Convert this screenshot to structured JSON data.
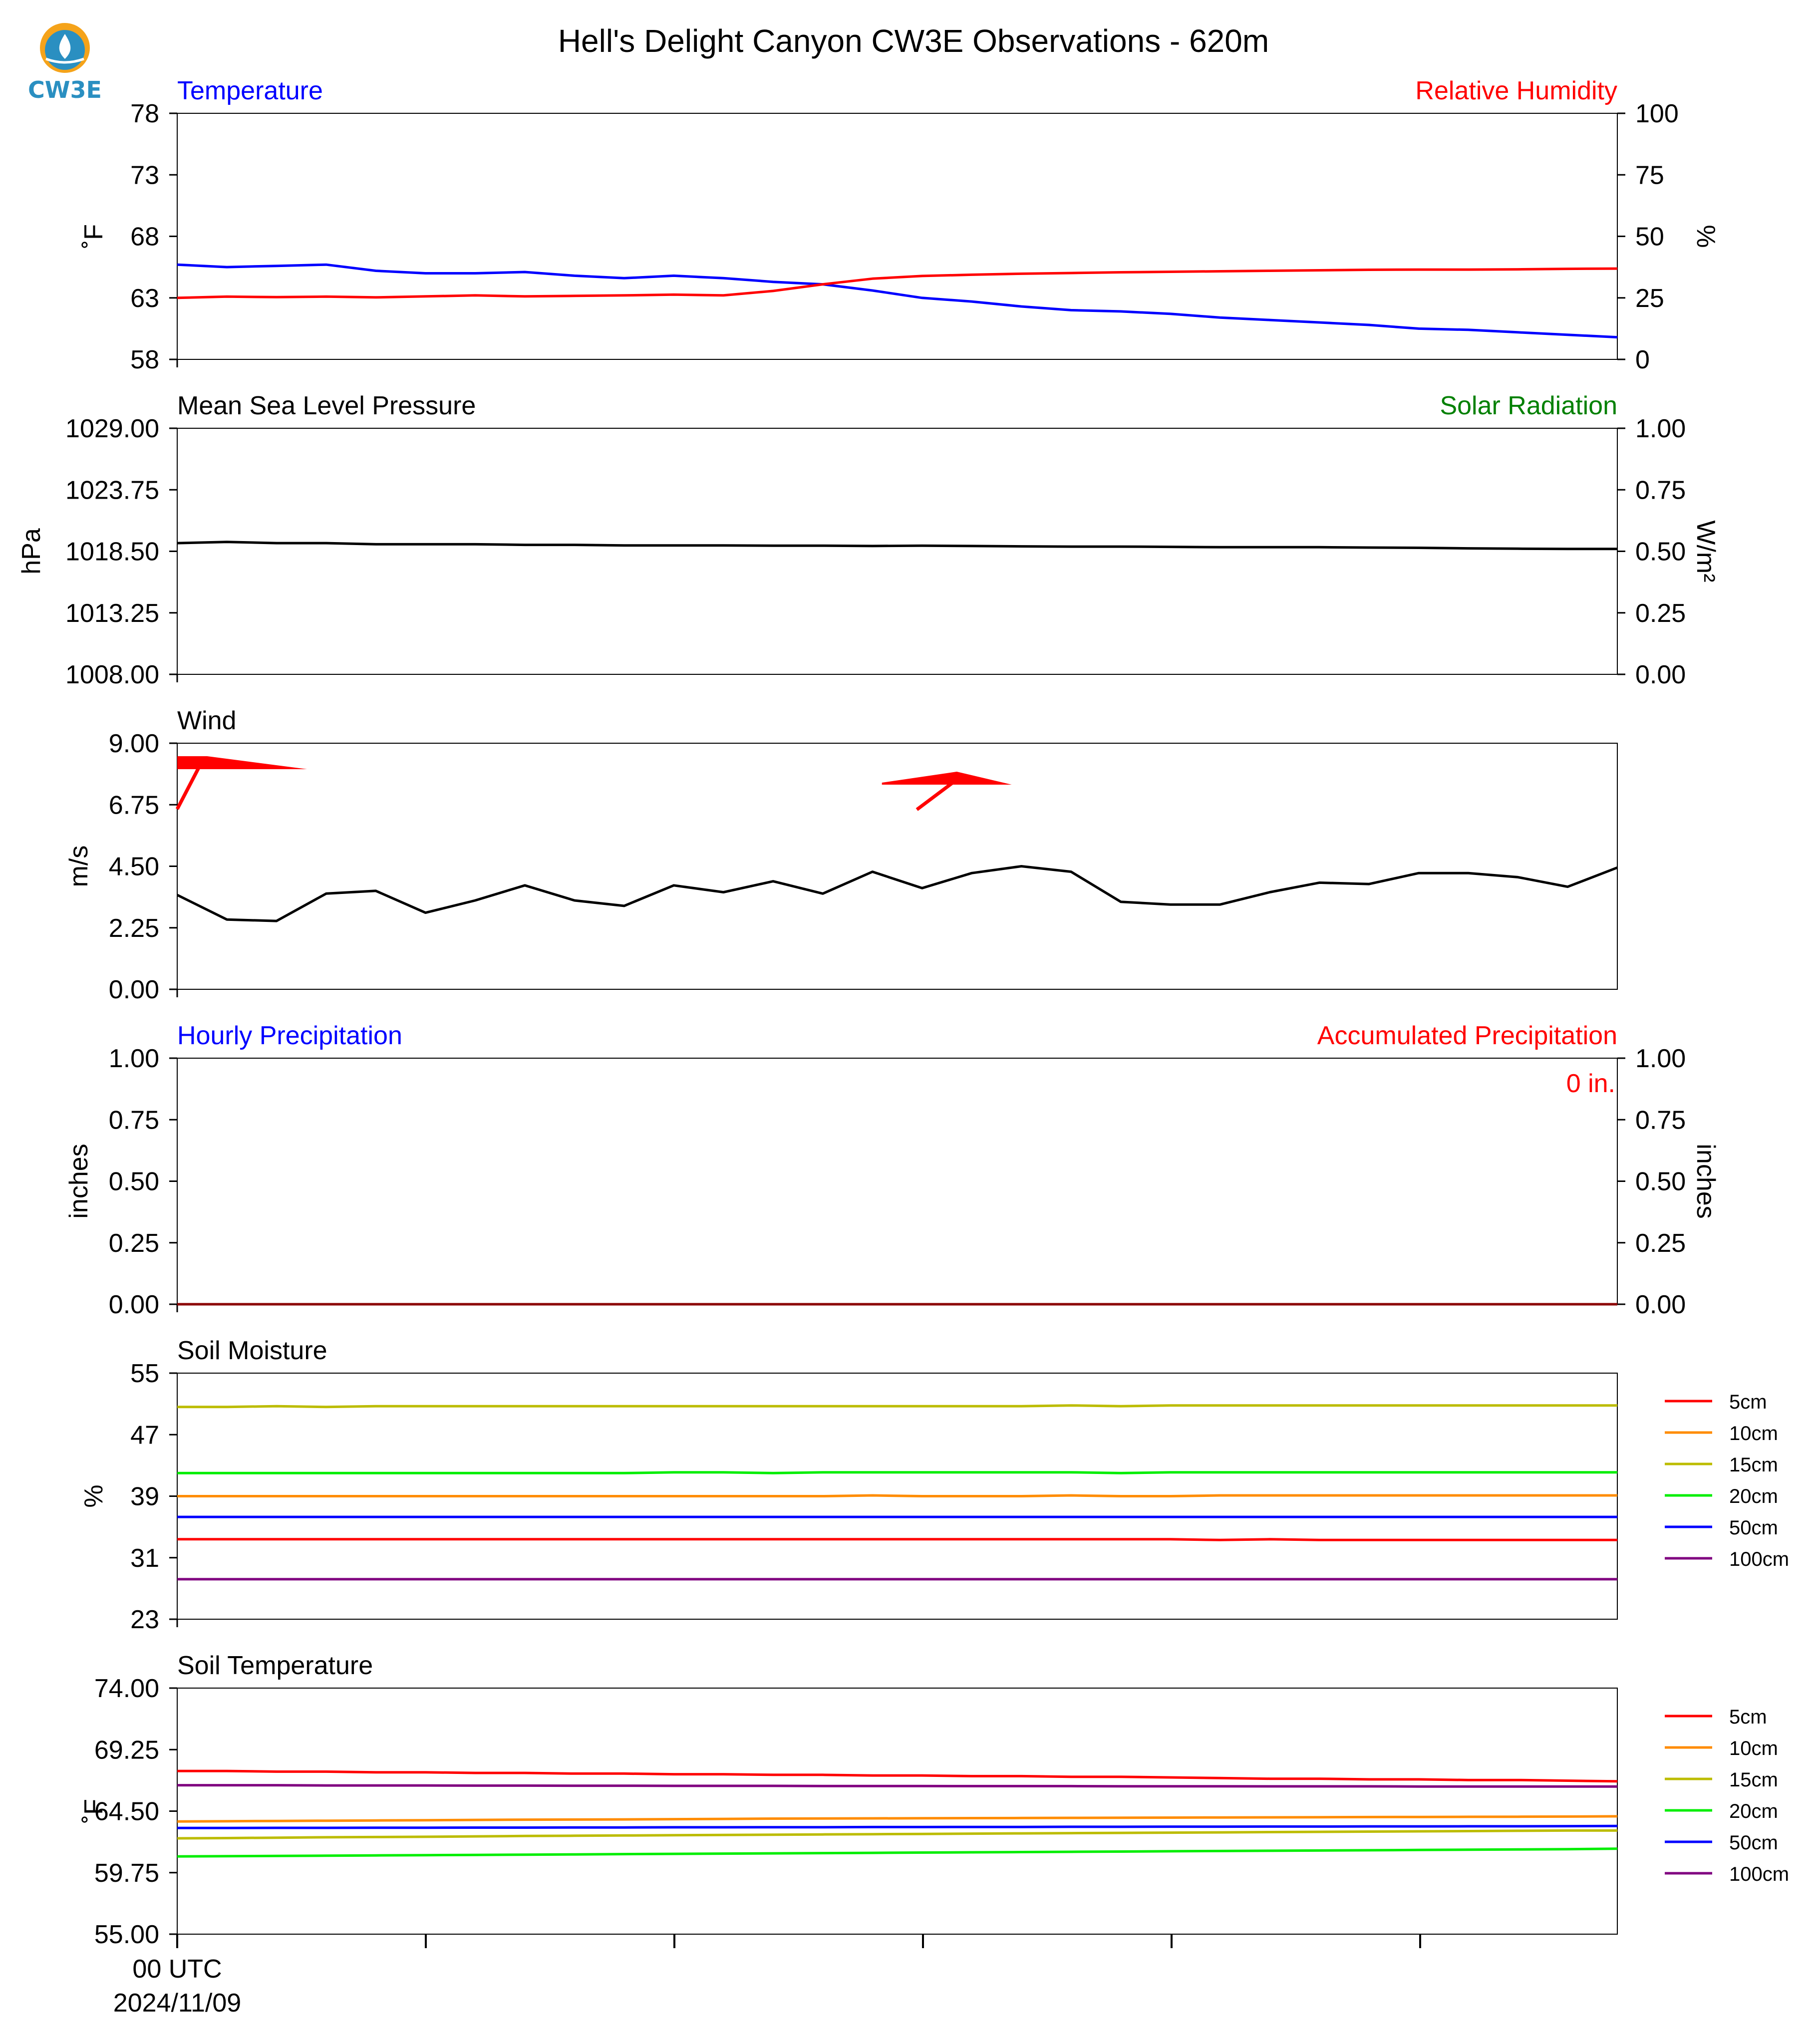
{
  "title": "Hell's Delight Canyon CW3E Observations - 620m",
  "logo": {
    "text": "CW3E",
    "color_primary": "#2a8fc1",
    "color_accent": "#f5a31a"
  },
  "x_axis": {
    "start_label": "00 UTC",
    "date_label": "2024/11/09",
    "tick_count": 6
  },
  "chart_data": [
    {
      "id": "temp_rh",
      "type": "line",
      "left_title": "Temperature",
      "left_title_color": "#0000ff",
      "right_title": "Relative Humidity",
      "right_title_color": "#ff0000",
      "ylabel": "˚F",
      "ylabel_right": "%",
      "ylim": [
        58,
        78
      ],
      "yticks": [
        "78",
        "73",
        "68",
        "63",
        "58"
      ],
      "ylim_right": [
        0,
        100
      ],
      "yticks_right": [
        "100",
        "75",
        "50",
        "25",
        "0"
      ],
      "series": [
        {
          "name": "Temperature",
          "axis": "left",
          "color": "#0000ff",
          "values": [
            65.7,
            65.5,
            65.6,
            65.7,
            65.2,
            65.0,
            65.0,
            65.1,
            64.8,
            64.6,
            64.8,
            64.6,
            64.3,
            64.1,
            63.6,
            63.0,
            62.7,
            62.3,
            62.0,
            61.9,
            61.7,
            61.4,
            61.2,
            61.0,
            60.8,
            60.5,
            60.4,
            60.2,
            60.0,
            59.8
          ]
        },
        {
          "name": "Relative Humidity",
          "axis": "right",
          "color": "#ff0000",
          "values": [
            25.0,
            25.5,
            25.3,
            25.5,
            25.2,
            25.6,
            26.0,
            25.6,
            25.8,
            26.0,
            26.3,
            26.0,
            27.8,
            30.5,
            32.8,
            33.9,
            34.4,
            34.8,
            35.1,
            35.4,
            35.6,
            35.8,
            36.0,
            36.2,
            36.4,
            36.5,
            36.5,
            36.6,
            36.8,
            36.9
          ]
        }
      ]
    },
    {
      "id": "pressure",
      "type": "line",
      "left_title": "Mean Sea Level Pressure",
      "left_title_color": "#000000",
      "right_title": "Solar Radiation",
      "right_title_color": "#008000",
      "ylabel": "hPa",
      "ylabel_right": "W/m²",
      "ylim": [
        1008,
        1029
      ],
      "yticks": [
        "1029.00",
        "1023.75",
        "1018.50",
        "1013.25",
        "1008.00"
      ],
      "ylim_right": [
        0,
        1
      ],
      "yticks_right": [
        "1.00",
        "0.75",
        "0.50",
        "0.25",
        "0.00"
      ],
      "series": [
        {
          "name": "Mean Sea Level Pressure",
          "axis": "left",
          "color": "#000000",
          "values": [
            1019.2,
            1019.3,
            1019.2,
            1019.2,
            1019.1,
            1019.1,
            1019.1,
            1019.05,
            1019.05,
            1019.0,
            1019.0,
            1019.0,
            1018.98,
            1018.98,
            1018.95,
            1018.98,
            1018.95,
            1018.92,
            1018.9,
            1018.9,
            1018.88,
            1018.85,
            1018.85,
            1018.85,
            1018.82,
            1018.8,
            1018.75,
            1018.72,
            1018.7,
            1018.7
          ]
        }
      ]
    },
    {
      "id": "wind",
      "type": "line",
      "left_title": "Wind",
      "left_title_color": "#000000",
      "ylabel": "m/s",
      "ylim": [
        0,
        9
      ],
      "yticks": [
        "9.00",
        "6.75",
        "4.50",
        "2.25",
        "0.00"
      ],
      "series": [
        {
          "name": "Wind",
          "axis": "left",
          "color": "#000000",
          "values": [
            3.45,
            2.55,
            2.5,
            3.5,
            3.6,
            2.8,
            3.25,
            3.8,
            3.25,
            3.05,
            3.8,
            3.55,
            3.95,
            3.5,
            4.3,
            3.7,
            4.25,
            4.5,
            4.3,
            3.2,
            3.1,
            3.1,
            3.55,
            3.9,
            3.85,
            4.25,
            4.25,
            4.1,
            3.75,
            4.45
          ]
        }
      ],
      "barbs": [
        {
          "x_index": 0,
          "direction": "west",
          "note": "pennant"
        },
        {
          "x_index": 16,
          "direction": "east",
          "note": "pennant"
        }
      ]
    },
    {
      "id": "precip",
      "type": "line",
      "left_title": "Hourly Precipitation",
      "left_title_color": "#0000ff",
      "right_title": "Accumulated Precipitation",
      "right_title_color": "#ff0000",
      "annotation": "0 in.",
      "annotation_color": "#ff0000",
      "ylabel": "inches",
      "ylabel_right": "inches",
      "ylim": [
        0,
        1
      ],
      "yticks": [
        "1.00",
        "0.75",
        "0.50",
        "0.25",
        "0.00"
      ],
      "ylim_right": [
        0,
        1
      ],
      "yticks_right": [
        "1.00",
        "0.75",
        "0.50",
        "0.25",
        "0.00"
      ],
      "series": [
        {
          "name": "Accumulated Precipitation",
          "axis": "right",
          "color": "#8b0000",
          "values": [
            0,
            0,
            0,
            0,
            0,
            0,
            0,
            0,
            0,
            0,
            0,
            0,
            0,
            0,
            0,
            0,
            0,
            0,
            0,
            0,
            0,
            0,
            0,
            0,
            0,
            0,
            0,
            0,
            0,
            0
          ]
        }
      ]
    },
    {
      "id": "soil_moisture",
      "type": "line",
      "left_title": "Soil Moisture",
      "left_title_color": "#000000",
      "ylabel": "%",
      "ylim": [
        23,
        55
      ],
      "yticks": [
        "55",
        "47",
        "39",
        "31",
        "23"
      ],
      "legend": true,
      "series": [
        {
          "name": "5cm",
          "axis": "left",
          "color": "#ff0000",
          "values": [
            33.4,
            33.4,
            33.4,
            33.4,
            33.4,
            33.4,
            33.4,
            33.4,
            33.4,
            33.4,
            33.4,
            33.4,
            33.4,
            33.4,
            33.4,
            33.4,
            33.4,
            33.4,
            33.4,
            33.4,
            33.4,
            33.3,
            33.4,
            33.3,
            33.3,
            33.3,
            33.3,
            33.3,
            33.3,
            33.3
          ]
        },
        {
          "name": "10cm",
          "axis": "left",
          "color": "#ff8c00",
          "values": [
            39.0,
            39.0,
            39.0,
            39.0,
            39.0,
            39.0,
            39.0,
            39.0,
            39.0,
            39.0,
            39.0,
            39.0,
            39.0,
            39.0,
            39.1,
            39.0,
            39.0,
            39.0,
            39.1,
            39.0,
            39.0,
            39.1,
            39.1,
            39.1,
            39.1,
            39.1,
            39.1,
            39.1,
            39.1,
            39.1
          ]
        },
        {
          "name": "15cm",
          "axis": "left",
          "color": "#bcbc00",
          "values": [
            50.6,
            50.6,
            50.7,
            50.6,
            50.7,
            50.7,
            50.7,
            50.7,
            50.7,
            50.7,
            50.7,
            50.7,
            50.7,
            50.7,
            50.7,
            50.7,
            50.7,
            50.7,
            50.8,
            50.7,
            50.8,
            50.8,
            50.8,
            50.8,
            50.8,
            50.8,
            50.8,
            50.8,
            50.8,
            50.8
          ]
        },
        {
          "name": "20cm",
          "axis": "left",
          "color": "#00ee00",
          "values": [
            42.0,
            42.0,
            42.0,
            42.0,
            42.0,
            42.0,
            42.0,
            42.0,
            42.0,
            42.0,
            42.1,
            42.1,
            42.0,
            42.1,
            42.1,
            42.1,
            42.1,
            42.1,
            42.1,
            42.0,
            42.1,
            42.1,
            42.1,
            42.1,
            42.1,
            42.1,
            42.1,
            42.1,
            42.1,
            42.1
          ]
        },
        {
          "name": "50cm",
          "axis": "left",
          "color": "#0000ff",
          "values": [
            36.3,
            36.3,
            36.3,
            36.3,
            36.3,
            36.3,
            36.3,
            36.3,
            36.3,
            36.3,
            36.3,
            36.3,
            36.3,
            36.3,
            36.3,
            36.3,
            36.3,
            36.3,
            36.3,
            36.3,
            36.3,
            36.3,
            36.3,
            36.3,
            36.3,
            36.3,
            36.3,
            36.3,
            36.3,
            36.3
          ]
        },
        {
          "name": "100cm",
          "axis": "left",
          "color": "#800080",
          "values": [
            28.2,
            28.2,
            28.2,
            28.2,
            28.2,
            28.2,
            28.2,
            28.2,
            28.2,
            28.2,
            28.2,
            28.2,
            28.2,
            28.2,
            28.2,
            28.2,
            28.2,
            28.2,
            28.2,
            28.2,
            28.2,
            28.2,
            28.2,
            28.2,
            28.2,
            28.2,
            28.2,
            28.2,
            28.2,
            28.2
          ]
        }
      ]
    },
    {
      "id": "soil_temp",
      "type": "line",
      "left_title": "Soil Temperature",
      "left_title_color": "#000000",
      "ylabel": "˚F",
      "ylim": [
        55,
        74
      ],
      "yticks": [
        "74.00",
        "69.25",
        "64.50",
        "59.75",
        "55.00"
      ],
      "legend": true,
      "series": [
        {
          "name": "5cm",
          "axis": "left",
          "color": "#ff0000",
          "values": [
            67.6,
            67.6,
            67.55,
            67.55,
            67.5,
            67.5,
            67.45,
            67.45,
            67.4,
            67.4,
            67.35,
            67.35,
            67.3,
            67.3,
            67.25,
            67.25,
            67.2,
            67.2,
            67.15,
            67.15,
            67.1,
            67.05,
            67.0,
            67.0,
            66.95,
            66.95,
            66.9,
            66.9,
            66.85,
            66.8
          ]
        },
        {
          "name": "10cm",
          "axis": "left",
          "color": "#ff8c00",
          "values": [
            63.7,
            63.72,
            63.74,
            63.76,
            63.78,
            63.8,
            63.82,
            63.84,
            63.85,
            63.86,
            63.88,
            63.9,
            63.92,
            63.93,
            63.94,
            63.95,
            63.96,
            63.97,
            63.98,
            63.99,
            64.0,
            64.01,
            64.02,
            64.03,
            64.04,
            64.05,
            64.06,
            64.07,
            64.08,
            64.1
          ]
        },
        {
          "name": "15cm",
          "axis": "left",
          "color": "#bcbc00",
          "values": [
            62.4,
            62.42,
            62.45,
            62.48,
            62.5,
            62.52,
            62.55,
            62.58,
            62.6,
            62.62,
            62.64,
            62.66,
            62.68,
            62.7,
            62.72,
            62.74,
            62.76,
            62.78,
            62.8,
            62.82,
            62.84,
            62.86,
            62.88,
            62.9,
            62.92,
            62.94,
            62.96,
            62.98,
            63.0,
            63.0
          ]
        },
        {
          "name": "20cm",
          "axis": "left",
          "color": "#00ee00",
          "values": [
            61.0,
            61.02,
            61.04,
            61.06,
            61.08,
            61.1,
            61.12,
            61.14,
            61.16,
            61.18,
            61.2,
            61.22,
            61.24,
            61.26,
            61.28,
            61.3,
            61.32,
            61.34,
            61.36,
            61.38,
            61.4,
            61.42,
            61.44,
            61.46,
            61.48,
            61.5,
            61.52,
            61.54,
            61.56,
            61.6
          ]
        },
        {
          "name": "50cm",
          "axis": "left",
          "color": "#0000ff",
          "values": [
            63.2,
            63.2,
            63.21,
            63.21,
            63.22,
            63.22,
            63.23,
            63.23,
            63.24,
            63.24,
            63.25,
            63.25,
            63.26,
            63.26,
            63.27,
            63.27,
            63.28,
            63.28,
            63.29,
            63.29,
            63.3,
            63.3,
            63.31,
            63.31,
            63.32,
            63.32,
            63.33,
            63.33,
            63.34,
            63.35
          ]
        },
        {
          "name": "100cm",
          "axis": "left",
          "color": "#800080",
          "values": [
            66.5,
            66.5,
            66.5,
            66.48,
            66.48,
            66.48,
            66.47,
            66.47,
            66.46,
            66.46,
            66.45,
            66.45,
            66.45,
            66.44,
            66.44,
            66.44,
            66.43,
            66.43,
            66.43,
            66.42,
            66.42,
            66.42,
            66.41,
            66.41,
            66.41,
            66.4,
            66.4,
            66.4,
            66.4,
            66.4
          ]
        }
      ]
    }
  ]
}
